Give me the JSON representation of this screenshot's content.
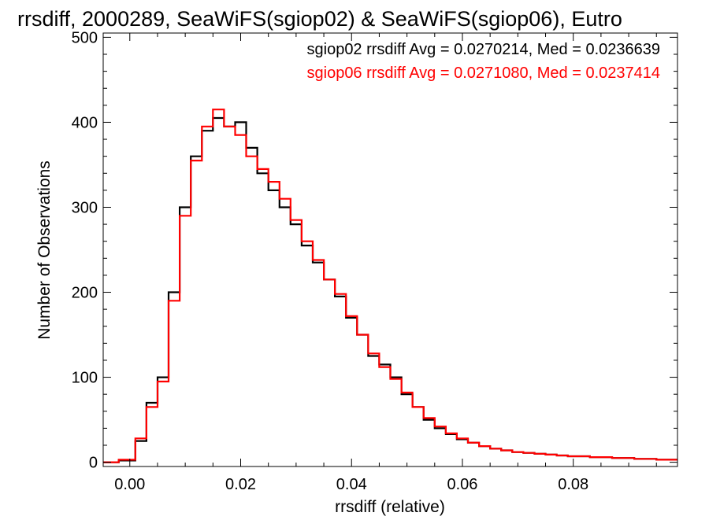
{
  "chart_data": {
    "type": "line",
    "title": "rrsdiff, 2000289, SeaWiFS(sgiop02) & SeaWiFS(sgiop06), Eutro",
    "xlabel": "rrsdiff (relative)",
    "ylabel": "Number of Observations",
    "xlim": [
      -0.0048,
      0.0988
    ],
    "ylim": [
      -5,
      505
    ],
    "xticks": [
      0.0,
      0.02,
      0.04,
      0.06,
      0.08
    ],
    "xtick_labels": [
      "0.00",
      "0.02",
      "0.04",
      "0.06",
      "0.08"
    ],
    "yticks": [
      0,
      100,
      200,
      300,
      400,
      500
    ],
    "ytick_labels": [
      "0",
      "100",
      "200",
      "300",
      "400",
      "500"
    ],
    "grid": false,
    "legend_position": "top-right",
    "annotations": [
      {
        "text": "sgiop02 rrsdiff Avg = 0.0270214, Med = 0.0236639",
        "color": "#000000"
      },
      {
        "text": "sgiop06 rrsdiff Avg = 0.0271080, Med = 0.0237414",
        "color": "#ff0000"
      }
    ],
    "series": [
      {
        "color": "#000000",
        "step": true,
        "x": [
          -0.004,
          0.0,
          0.002,
          0.004,
          0.006,
          0.008,
          0.01,
          0.012,
          0.014,
          0.016,
          0.018,
          0.02,
          0.022,
          0.024,
          0.026,
          0.028,
          0.03,
          0.032,
          0.034,
          0.036,
          0.038,
          0.04,
          0.042,
          0.044,
          0.046,
          0.048,
          0.05,
          0.052,
          0.054,
          0.056,
          0.058,
          0.06,
          0.062,
          0.064,
          0.066,
          0.068,
          0.07,
          0.072,
          0.074,
          0.076,
          0.078,
          0.08,
          0.082,
          0.084,
          0.086,
          0.088,
          0.09,
          0.092,
          0.094,
          0.096,
          0.098
        ],
        "y": [
          0,
          2,
          25,
          70,
          100,
          200,
          300,
          360,
          390,
          405,
          395,
          400,
          370,
          340,
          320,
          300,
          280,
          255,
          235,
          215,
          195,
          170,
          150,
          125,
          115,
          100,
          80,
          65,
          50,
          40,
          33,
          27,
          23,
          19,
          16,
          14,
          12,
          11,
          10,
          9,
          8,
          7,
          7,
          6,
          6,
          5,
          5,
          4,
          4,
          3,
          3
        ]
      },
      {
        "color": "#ff0000",
        "step": true,
        "x": [
          -0.004,
          0.0,
          0.002,
          0.004,
          0.006,
          0.008,
          0.01,
          0.012,
          0.014,
          0.016,
          0.018,
          0.02,
          0.022,
          0.024,
          0.026,
          0.028,
          0.03,
          0.032,
          0.034,
          0.036,
          0.038,
          0.04,
          0.042,
          0.044,
          0.046,
          0.048,
          0.05,
          0.052,
          0.054,
          0.056,
          0.058,
          0.06,
          0.062,
          0.064,
          0.066,
          0.068,
          0.07,
          0.072,
          0.074,
          0.076,
          0.078,
          0.08,
          0.082,
          0.084,
          0.086,
          0.088,
          0.09,
          0.092,
          0.094,
          0.096,
          0.098
        ],
        "y": [
          0,
          3,
          28,
          65,
          95,
          190,
          290,
          355,
          395,
          415,
          395,
          385,
          360,
          345,
          330,
          310,
          285,
          260,
          238,
          215,
          198,
          172,
          150,
          128,
          112,
          98,
          82,
          65,
          52,
          42,
          34,
          28,
          23,
          19,
          16,
          14,
          12,
          11,
          10,
          9,
          8,
          7,
          7,
          6,
          6,
          5,
          5,
          4,
          4,
          3,
          3
        ]
      }
    ]
  }
}
